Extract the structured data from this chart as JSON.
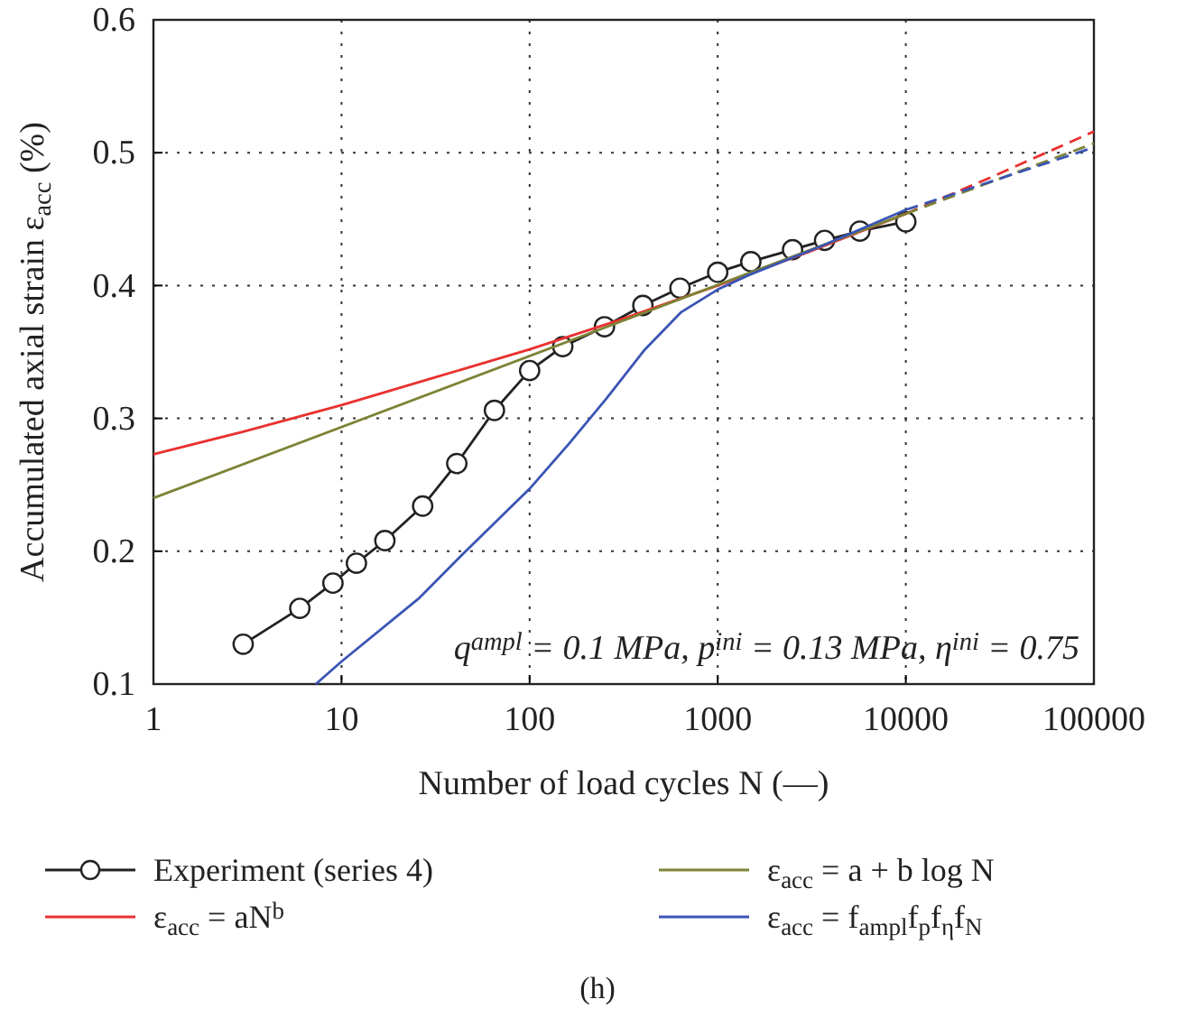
{
  "chart_data": {
    "type": "line",
    "xlabel": "Number of load cycles N (—)",
    "ylabel": "Accumulated axial strain ε$_{acc}$ (%)",
    "log": "x",
    "grid": true,
    "legend": "bottom",
    "xlim": [
      1,
      100000
    ],
    "xticks": [
      1,
      10,
      100,
      1000,
      10000,
      100000
    ],
    "ylim": [
      0.1,
      0.6
    ],
    "yticks": [
      0.1,
      0.2,
      0.3,
      0.4,
      0.5,
      0.6
    ],
    "annotations": [
      "q$^{ampl}$ = 0.1 MPa, p$^{ini}$ = 0.13 MPa, η$^{ini}$ = 0.75",
      "(h)"
    ],
    "series": [
      {
        "name": "Experiment (series 4)",
        "color": "#222222",
        "marker": "circle",
        "line_style": "solid",
        "x": [
          3,
          6,
          9,
          12,
          17,
          27,
          41,
          65,
          100,
          150,
          250,
          400,
          630,
          1000,
          1500,
          2500,
          3700,
          5700,
          10000
        ],
        "values": [
          0.13,
          0.157,
          0.176,
          0.191,
          0.208,
          0.234,
          0.266,
          0.306,
          0.336,
          0.354,
          0.369,
          0.385,
          0.398,
          0.41,
          0.418,
          0.427,
          0.434,
          0.441,
          0.448
        ]
      },
      {
        "name": "ε$_{acc}$ = aN$^{b}$",
        "color": "#e8312f",
        "marker": "none",
        "line_style": "solid",
        "x": [
          1,
          3,
          10,
          30,
          100,
          300,
          1000,
          3000,
          10000
        ],
        "values": [
          0.273,
          0.29,
          0.31,
          0.33,
          0.352,
          0.374,
          0.4,
          0.425,
          0.454
        ]
      },
      {
        "name": "ε$_{acc}$ = a + b log N",
        "color": "#7d8336",
        "marker": "none",
        "line_style": "solid",
        "x": [
          1,
          10000
        ],
        "values": [
          0.24,
          0.454
        ]
      },
      {
        "name": "ε$_{acc}$ = f$_{ampl}$f$_{p}$f$_{η}$f$_{N}$",
        "color": "#3a55b4",
        "marker": "none",
        "line_style": "solid",
        "x": [
          7.3,
          10,
          26,
          45,
          100,
          162,
          256,
          405,
          640,
          1000,
          1470,
          3600,
          10000
        ],
        "values": [
          0.1,
          0.117,
          0.165,
          0.199,
          0.247,
          0.281,
          0.315,
          0.351,
          0.38,
          0.397,
          0.408,
          0.43,
          0.457
        ]
      },
      {
        "color": "#e8312f",
        "marker": "none",
        "line_style": "dashed",
        "x": [
          10000,
          30000,
          100000
        ],
        "values": [
          0.454,
          0.483,
          0.516
        ]
      },
      {
        "color": "#7d8336",
        "marker": "none",
        "line_style": "dashed",
        "x": [
          10000,
          100000
        ],
        "values": [
          0.454,
          0.507
        ]
      },
      {
        "color": "#3a55b4",
        "marker": "none",
        "line_style": "dashed",
        "x": [
          10000,
          100000
        ],
        "values": [
          0.457,
          0.504
        ]
      }
    ]
  }
}
